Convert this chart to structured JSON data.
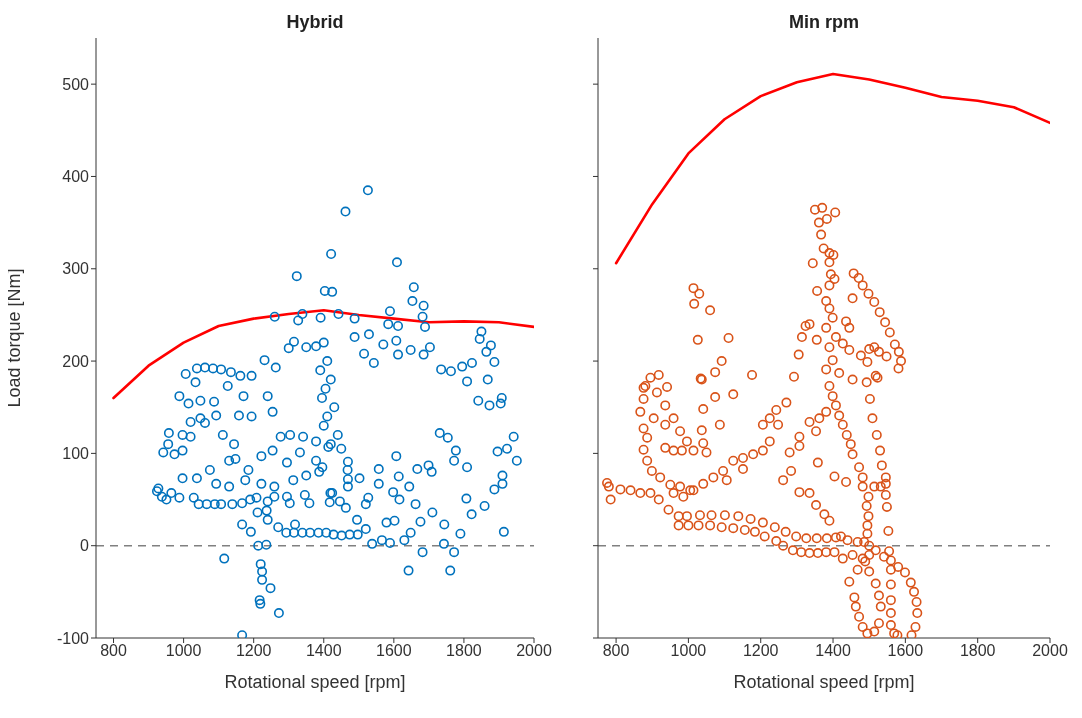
{
  "chart_data": [
    {
      "type": "scatter",
      "title": "Hybrid",
      "xlabel": "Rotational speed [rpm]",
      "ylabel": "Load torque [Nm]",
      "xlim": [
        750,
        2000
      ],
      "ylim": [
        -100,
        550
      ],
      "xticks": [
        800,
        1000,
        1200,
        1400,
        1600,
        1800,
        2000
      ],
      "yticks": [
        -100,
        0,
        100,
        200,
        300,
        400,
        500
      ],
      "ref_lines": [
        {
          "axis": "y",
          "value": 0,
          "color": "#808080",
          "line_style": "dashed"
        }
      ],
      "series": [
        {
          "marker": "circle",
          "color": "#0072bd",
          "x": [
            1526,
            1462,
            1421,
            1609,
            1323,
            1403,
            1424,
            1657,
            1653,
            1685,
            1260,
            1327,
            1339,
            1391,
            1442,
            1488,
            1589,
            1584,
            1612,
            1682,
            1689,
            1529,
            1850,
            1845,
            1877,
            1887,
            1864,
            1823,
            1795,
            1570,
            1607,
            1648,
            1703,
            1612,
            1685,
            1488,
            1515,
            1543,
            1300,
            1315,
            1350,
            1378,
            1231,
            1263,
            1006,
            1034,
            1038,
            1061,
            1084,
            1107,
            1135,
            1162,
            1194,
            1126,
            988,
            1014,
            1048,
            1087,
            1171,
            1240,
            1400,
            1410,
            1390,
            1420,
            1405,
            1395,
            1430,
            1410,
            1400,
            1440,
            1420,
            1450,
            1908,
            1905,
            1873,
            1841,
            1763,
            1735,
            1809,
            1868,
            1942,
            1951,
            1923,
            1896,
            1910,
            1910,
            1887,
            1914,
            1809,
            1807,
            1822,
            1859,
            1790,
            1772,
            1777,
            1754,
            1731,
            1744,
            1743,
            1772,
            1761,
            1708,
            1699,
            1667,
            1662,
            1676,
            1710,
            1682,
            1642,
            1648,
            1630,
            1607,
            1614,
            1598,
            1616,
            1644,
            1579,
            1602,
            1589,
            1566,
            1538,
            1520,
            1497,
            1474,
            1451,
            1428,
            1407,
            1385,
            1361,
            1339,
            1315,
            1293,
            1270,
            1240,
            1237,
            1211,
            1192,
            1167,
            1318,
            1495,
            1213,
            1236,
            1116,
            1220,
            1224,
            1224,
            1248,
            1217,
            1219,
            1272,
            1167,
            1557,
            1557,
            1527,
            1520,
            1502,
            1463,
            1446,
            1417,
            1469,
            1469,
            1468,
            1469,
            1424,
            1413,
            928,
            938,
            951,
            924,
            965,
            942,
            956,
            974,
            997,
            958,
            997,
            1020,
            988,
            1029,
            1043,
            1066,
            1089,
            1107,
            1020,
            1048,
            1061,
            1093,
            1112,
            1144,
            1139,
            1167,
            1190,
            1208,
            1240,
            1259,
            1295,
            1303,
            1346,
            1359,
            1419,
            1158,
            1194,
            1254,
            1277,
            1304,
            1341,
            1378,
            1130,
            1148,
            1185,
            1222,
            1254,
            1295,
            1332,
            1378,
            1396,
            1038,
            1075,
            1093,
            1130,
            1176,
            1222,
            1259,
            1313,
            1350,
            1387,
            997
          ],
          "values": [
            385,
            362,
            316,
            307,
            292,
            276,
            275,
            280,
            265,
            260,
            248,
            244,
            251,
            247,
            251,
            246,
            254,
            240,
            238,
            248,
            237,
            229,
            232,
            224,
            217,
            199,
            210,
            198,
            194,
            218,
            222,
            212,
            215,
            207,
            207,
            226,
            208,
            198,
            214,
            221,
            215,
            216,
            201,
            193,
            186,
            177,
            192,
            193,
            192,
            191,
            188,
            184,
            184,
            173,
            162,
            154,
            157,
            156,
            162,
            162,
            220,
            200,
            190,
            180,
            170,
            160,
            150,
            140,
            130,
            120,
            110,
            105,
            160,
            154,
            152,
            157,
            189,
            191,
            178,
            180,
            118,
            92,
            105,
            102,
            76,
            67,
            61,
            15,
            85,
            51,
            34,
            43,
            13,
            92,
            103,
            117,
            122,
            23,
            2,
            -7,
            -27,
            80,
            87,
            83,
            45,
            26,
            36,
            -7,
            -27,
            14,
            6,
            97,
            75,
            58,
            50,
            64,
            25,
            27,
            3,
            6,
            2,
            18,
            12,
            12,
            11,
            12,
            14,
            14,
            14,
            14,
            14,
            14,
            20,
            28,
            38,
            36,
            15,
            23,
            23,
            28,
            0,
            1,
            -14,
            -20,
            -28,
            -37,
            -46,
            -59,
            -63,
            -73,
            -97,
            83,
            67,
            52,
            45,
            73,
            41,
            48,
            47,
            64,
            72,
            82,
            91,
            57,
            107,
            62,
            53,
            50,
            59,
            57,
            101,
            110,
            99,
            103,
            122,
            120,
            118,
            52,
            52,
            45,
            45,
            45,
            45,
            134,
            138,
            133,
            141,
            120,
            110,
            45,
            46,
            50,
            52,
            48,
            53,
            53,
            46,
            55,
            46,
            57,
            141,
            140,
            145,
            118,
            120,
            118,
            113,
            92,
            94,
            82,
            97,
            103,
            90,
            101,
            92,
            85,
            73,
            82,
            67,
            64,
            71,
            67,
            64,
            71,
            76,
            80,
            73
          ]
        },
        {
          "type": "line",
          "color": "#ff0000",
          "line_style": "solid",
          "x": [
            800,
            900,
            1000,
            1100,
            1200,
            1300,
            1400,
            1500,
            1600,
            1700,
            1800,
            1900,
            2000
          ],
          "values": [
            160,
            195,
            220,
            238,
            246,
            251,
            255,
            250,
            246,
            242,
            243,
            242,
            237
          ]
        }
      ]
    },
    {
      "type": "scatter",
      "title": "Min rpm",
      "xlabel": "Rotational speed [rpm]",
      "xlim": [
        750,
        2000
      ],
      "ylim": [
        -100,
        550
      ],
      "xticks": [
        800,
        1000,
        1200,
        1400,
        1600,
        1800,
        2000
      ],
      "yticks": [
        -100,
        0,
        100,
        200,
        300,
        400,
        500
      ],
      "tick_labels": "x",
      "ref_lines": [
        {
          "axis": "y",
          "value": 0,
          "color": "#808080",
          "line_style": "dashed"
        }
      ],
      "series": [
        {
          "marker": "circle",
          "color": "#d95319",
          "x": [
            1350,
            1370,
            1406,
            1361,
            1383,
            1367,
            1374,
            1390,
            1401,
            1344,
            1390,
            1394,
            1404,
            1356,
            1390,
            1454,
            1457,
            1471,
            1482,
            1498,
            1514,
            1529,
            1544,
            1557,
            1571,
            1582,
            1588,
            1581,
            1014,
            1030,
            1016,
            1060,
            1026,
            1111,
            1092,
            1074,
            1034,
            1176,
            1292,
            1305,
            1314,
            1324,
            1335,
            1355,
            1381,
            1390,
            1399,
            1381,
            1408,
            1390,
            1427,
            1445,
            1399,
            1381,
            1417,
            1454,
            1436,
            1445,
            1500,
            1514,
            1477,
            1495,
            1527,
            1548,
            1518,
            1493,
            895,
            918,
            881,
            941,
            775,
            780,
            785,
            812,
            840,
            867,
            895,
            918,
            945,
            973,
            996,
            1032,
            1064,
            1101,
            1138,
            1172,
            1206,
            1239,
            1269,
            1298,
            1326,
            1355,
            1383,
            1408,
            1422,
            1440,
            1468,
            1486,
            1500,
            973,
            1000,
            1028,
            1060,
            1092,
            1124,
            1156,
            1184,
            1211,
            1243,
            1262,
            1289,
            1312,
            1335,
            1358,
            1381,
            1404,
            1427,
            1454,
            1482,
            1500,
            1518,
            1468,
            1445,
            1459,
            1463,
            1472,
            1482,
            1495,
            1514,
            1527,
            1532,
            1527,
            1518,
            1500,
            1489,
            1541,
            1560,
            1580,
            1599,
            1615,
            1624,
            1631,
            1633,
            1628,
            1617,
            1578,
            1569,
            1560,
            1560,
            1560,
            1560,
            1560,
            1555,
            1495,
            1495,
            1498,
            1493,
            1498,
            1482,
            1482,
            1472,
            1454,
            1449,
            1438,
            1427,
            1417,
            1408,
            1399,
            1390,
            1553,
            1549,
            1546,
            1546,
            1546,
            1535,
            1530,
            1521,
            1509,
            1502,
            1523,
            1532,
            1514,
            1206,
            1225,
            1243,
            1271,
            1248,
            1280,
            1307,
            1335,
            1362,
            1381,
            1353,
            1307,
            1284,
            1262,
            1358,
            1404,
            1307,
            1335,
            1353,
            1376,
            1390,
            1436,
            1225,
            1206,
            1179,
            1151,
            1124,
            1096,
            1069,
            1041,
            1014,
            986,
            959,
            876,
            876,
            867,
            876,
            886,
            876,
            886,
            899,
            922,
            950,
            977,
            1005,
            913,
            936,
            959,
            977,
            996,
            1014,
            1041,
            1050,
            936,
            959,
            982,
            936,
            904,
            1037,
            1074,
            1124,
            1087,
            1041,
            1037,
            1151,
            1106
          ],
          "values": [
            364,
            366,
            361,
            350,
            354,
            337,
            322,
            317,
            315,
            306,
            307,
            294,
            289,
            276,
            282,
            268,
            295,
            290,
            282,
            273,
            264,
            253,
            242,
            231,
            218,
            210,
            200,
            192,
            279,
            273,
            262,
            255,
            223,
            225,
            200,
            188,
            181,
            185,
            183,
            207,
            226,
            238,
            240,
            223,
            265,
            257,
            247,
            236,
            226,
            215,
            219,
            212,
            201,
            191,
            187,
            180,
            243,
            236,
            213,
            215,
            206,
            199,
            210,
            205,
            184,
            177,
            182,
            185,
            173,
            172,
            68,
            64,
            50,
            61,
            60,
            57,
            57,
            50,
            39,
            32,
            32,
            33,
            33,
            33,
            32,
            29,
            25,
            20,
            15,
            10,
            8,
            8,
            8,
            9,
            10,
            6,
            4,
            4,
            0,
            22,
            22,
            22,
            22,
            20,
            19,
            17,
            15,
            10,
            5,
            0,
            -5,
            -7,
            -8,
            -8,
            -7,
            -7,
            -14,
            -10,
            -14,
            -10,
            -5,
            -26,
            -39,
            -56,
            -66,
            -77,
            -88,
            -95,
            -93,
            -84,
            -66,
            -54,
            -41,
            -28,
            -17,
            -12,
            -16,
            -23,
            -29,
            -40,
            -50,
            -61,
            -73,
            -88,
            -97,
            -97,
            -95,
            -86,
            -73,
            -59,
            -42,
            -26,
            -6,
            13,
            22,
            32,
            43,
            53,
            64,
            74,
            85,
            99,
            110,
            120,
            131,
            141,
            152,
            162,
            173,
            16,
            42,
            55,
            67,
            74,
            87,
            103,
            120,
            138,
            159,
            182,
            64,
            64,
            131,
            138,
            147,
            155,
            131,
            101,
            108,
            134,
            138,
            145,
            124,
            118,
            81,
            71,
            90,
            75,
            58,
            57,
            44,
            34,
            27,
            69,
            113,
            103,
            99,
            95,
            92,
            81,
            74,
            67,
            60,
            53,
            57,
            171,
            159,
            145,
            127,
            117,
            104,
            92,
            81,
            74,
            66,
            64,
            60,
            166,
            152,
            138,
            124,
            113,
            103,
            111,
            101,
            106,
            103,
            103,
            131,
            138,
            180,
            161,
            164,
            131,
            148,
            125,
            83,
            71
          ]
        },
        {
          "type": "line",
          "color": "#ff0000",
          "line_style": "solid",
          "x": [
            800,
            900,
            1000,
            1100,
            1200,
            1300,
            1400,
            1500,
            1600,
            1700,
            1800,
            1900,
            2000
          ],
          "values": [
            306,
            370,
            425,
            462,
            487,
            502,
            511,
            505,
            496,
            486,
            482,
            475,
            458
          ]
        }
      ]
    }
  ]
}
